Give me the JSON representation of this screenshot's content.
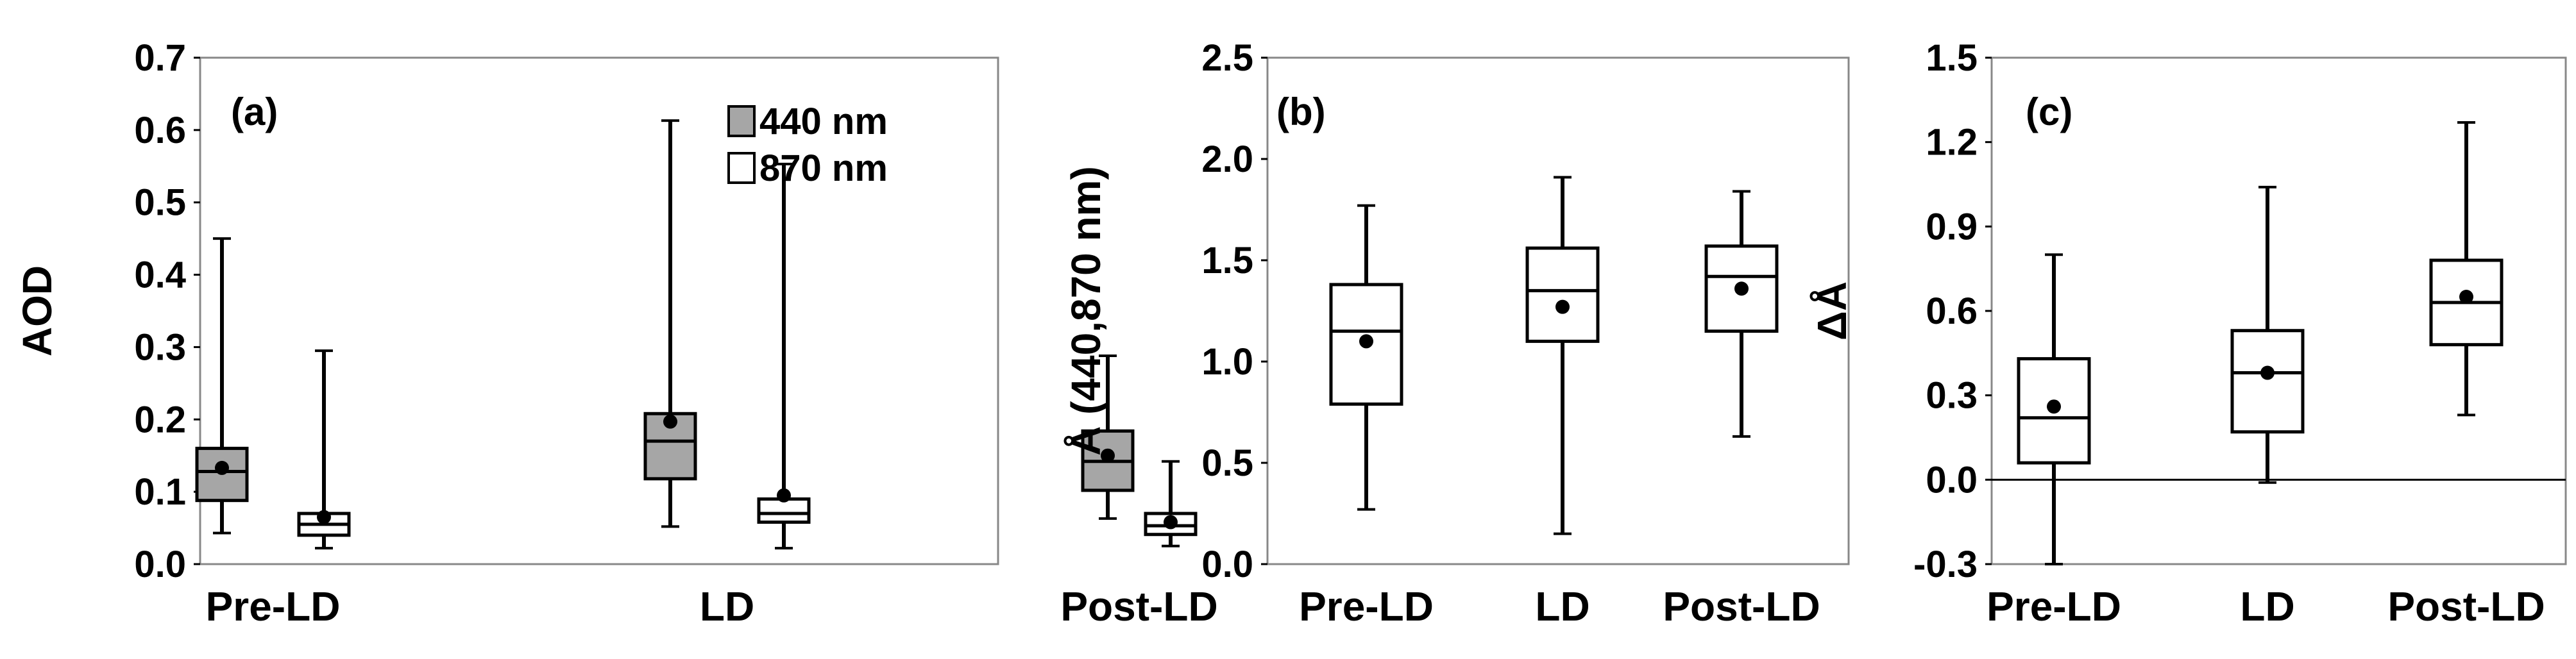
{
  "chart_data": [
    {
      "type": "boxplot",
      "panel_label": "(a)",
      "ylabel": "AOD",
      "ylim": [
        0,
        0.7
      ],
      "yticks": [
        "0.0",
        "0.1",
        "0.2",
        "0.3",
        "0.4",
        "0.5",
        "0.6",
        "0.7"
      ],
      "categories": [
        "Pre-LD",
        "LD",
        "Post-LD"
      ],
      "legend": [
        "440 nm",
        "870 nm"
      ],
      "series": [
        {
          "name": "440 nm",
          "color": "#a6a6a6",
          "boxes": [
            {
              "min": 0.043,
              "q1": 0.088,
              "median": 0.128,
              "q3": 0.16,
              "max": 0.45,
              "mean": 0.133
            },
            {
              "min": 0.052,
              "q1": 0.118,
              "median": 0.17,
              "q3": 0.208,
              "max": 0.613,
              "mean": 0.197
            },
            {
              "min": 0.063,
              "q1": 0.102,
              "median": 0.142,
              "q3": 0.184,
              "max": 0.288,
              "mean": 0.15
            }
          ]
        },
        {
          "name": "870 nm",
          "color": "#ffffff",
          "boxes": [
            {
              "min": 0.022,
              "q1": 0.04,
              "median": 0.055,
              "q3": 0.07,
              "max": 0.295,
              "mean": 0.065
            },
            {
              "min": 0.022,
              "q1": 0.058,
              "median": 0.07,
              "q3": 0.09,
              "max": 0.553,
              "mean": 0.095
            },
            {
              "min": 0.025,
              "q1": 0.041,
              "median": 0.053,
              "q3": 0.07,
              "max": 0.142,
              "mean": 0.058
            }
          ]
        }
      ]
    },
    {
      "type": "boxplot",
      "panel_label": "(b)",
      "ylabel": "Å (440,870 nm)",
      "ylim": [
        0,
        2.5
      ],
      "yticks": [
        "0.0",
        "0.5",
        "1.0",
        "1.5",
        "2.0",
        "2.5"
      ],
      "categories": [
        "Pre-LD",
        "LD",
        "Post-LD"
      ],
      "series": [
        {
          "name": "Å",
          "color": "#ffffff",
          "boxes": [
            {
              "min": 0.27,
              "q1": 0.79,
              "median": 1.15,
              "q3": 1.38,
              "max": 1.77,
              "mean": 1.1
            },
            {
              "min": 0.15,
              "q1": 1.1,
              "median": 1.35,
              "q3": 1.56,
              "max": 1.91,
              "mean": 1.27
            },
            {
              "min": 0.63,
              "q1": 1.15,
              "median": 1.42,
              "q3": 1.57,
              "max": 1.84,
              "mean": 1.36
            }
          ]
        }
      ]
    },
    {
      "type": "boxplot",
      "panel_label": "(c)",
      "ylabel": "ΔÅ",
      "ylim": [
        -0.3,
        1.5
      ],
      "yticks": [
        "-0.3",
        "0.0",
        "0.3",
        "0.6",
        "0.9",
        "1.2",
        "1.5"
      ],
      "zero_line": 0,
      "categories": [
        "Pre-LD",
        "LD",
        "Post-LD"
      ],
      "series": [
        {
          "name": "ΔÅ",
          "color": "#ffffff",
          "boxes": [
            {
              "min": -0.3,
              "q1": 0.06,
              "median": 0.22,
              "q3": 0.43,
              "max": 0.8,
              "mean": 0.26
            },
            {
              "min": -0.01,
              "q1": 0.17,
              "median": 0.38,
              "q3": 0.53,
              "max": 1.04,
              "mean": 0.38
            },
            {
              "min": 0.23,
              "q1": 0.48,
              "median": 0.63,
              "q3": 0.78,
              "max": 1.27,
              "mean": 0.65
            }
          ]
        }
      ]
    }
  ]
}
